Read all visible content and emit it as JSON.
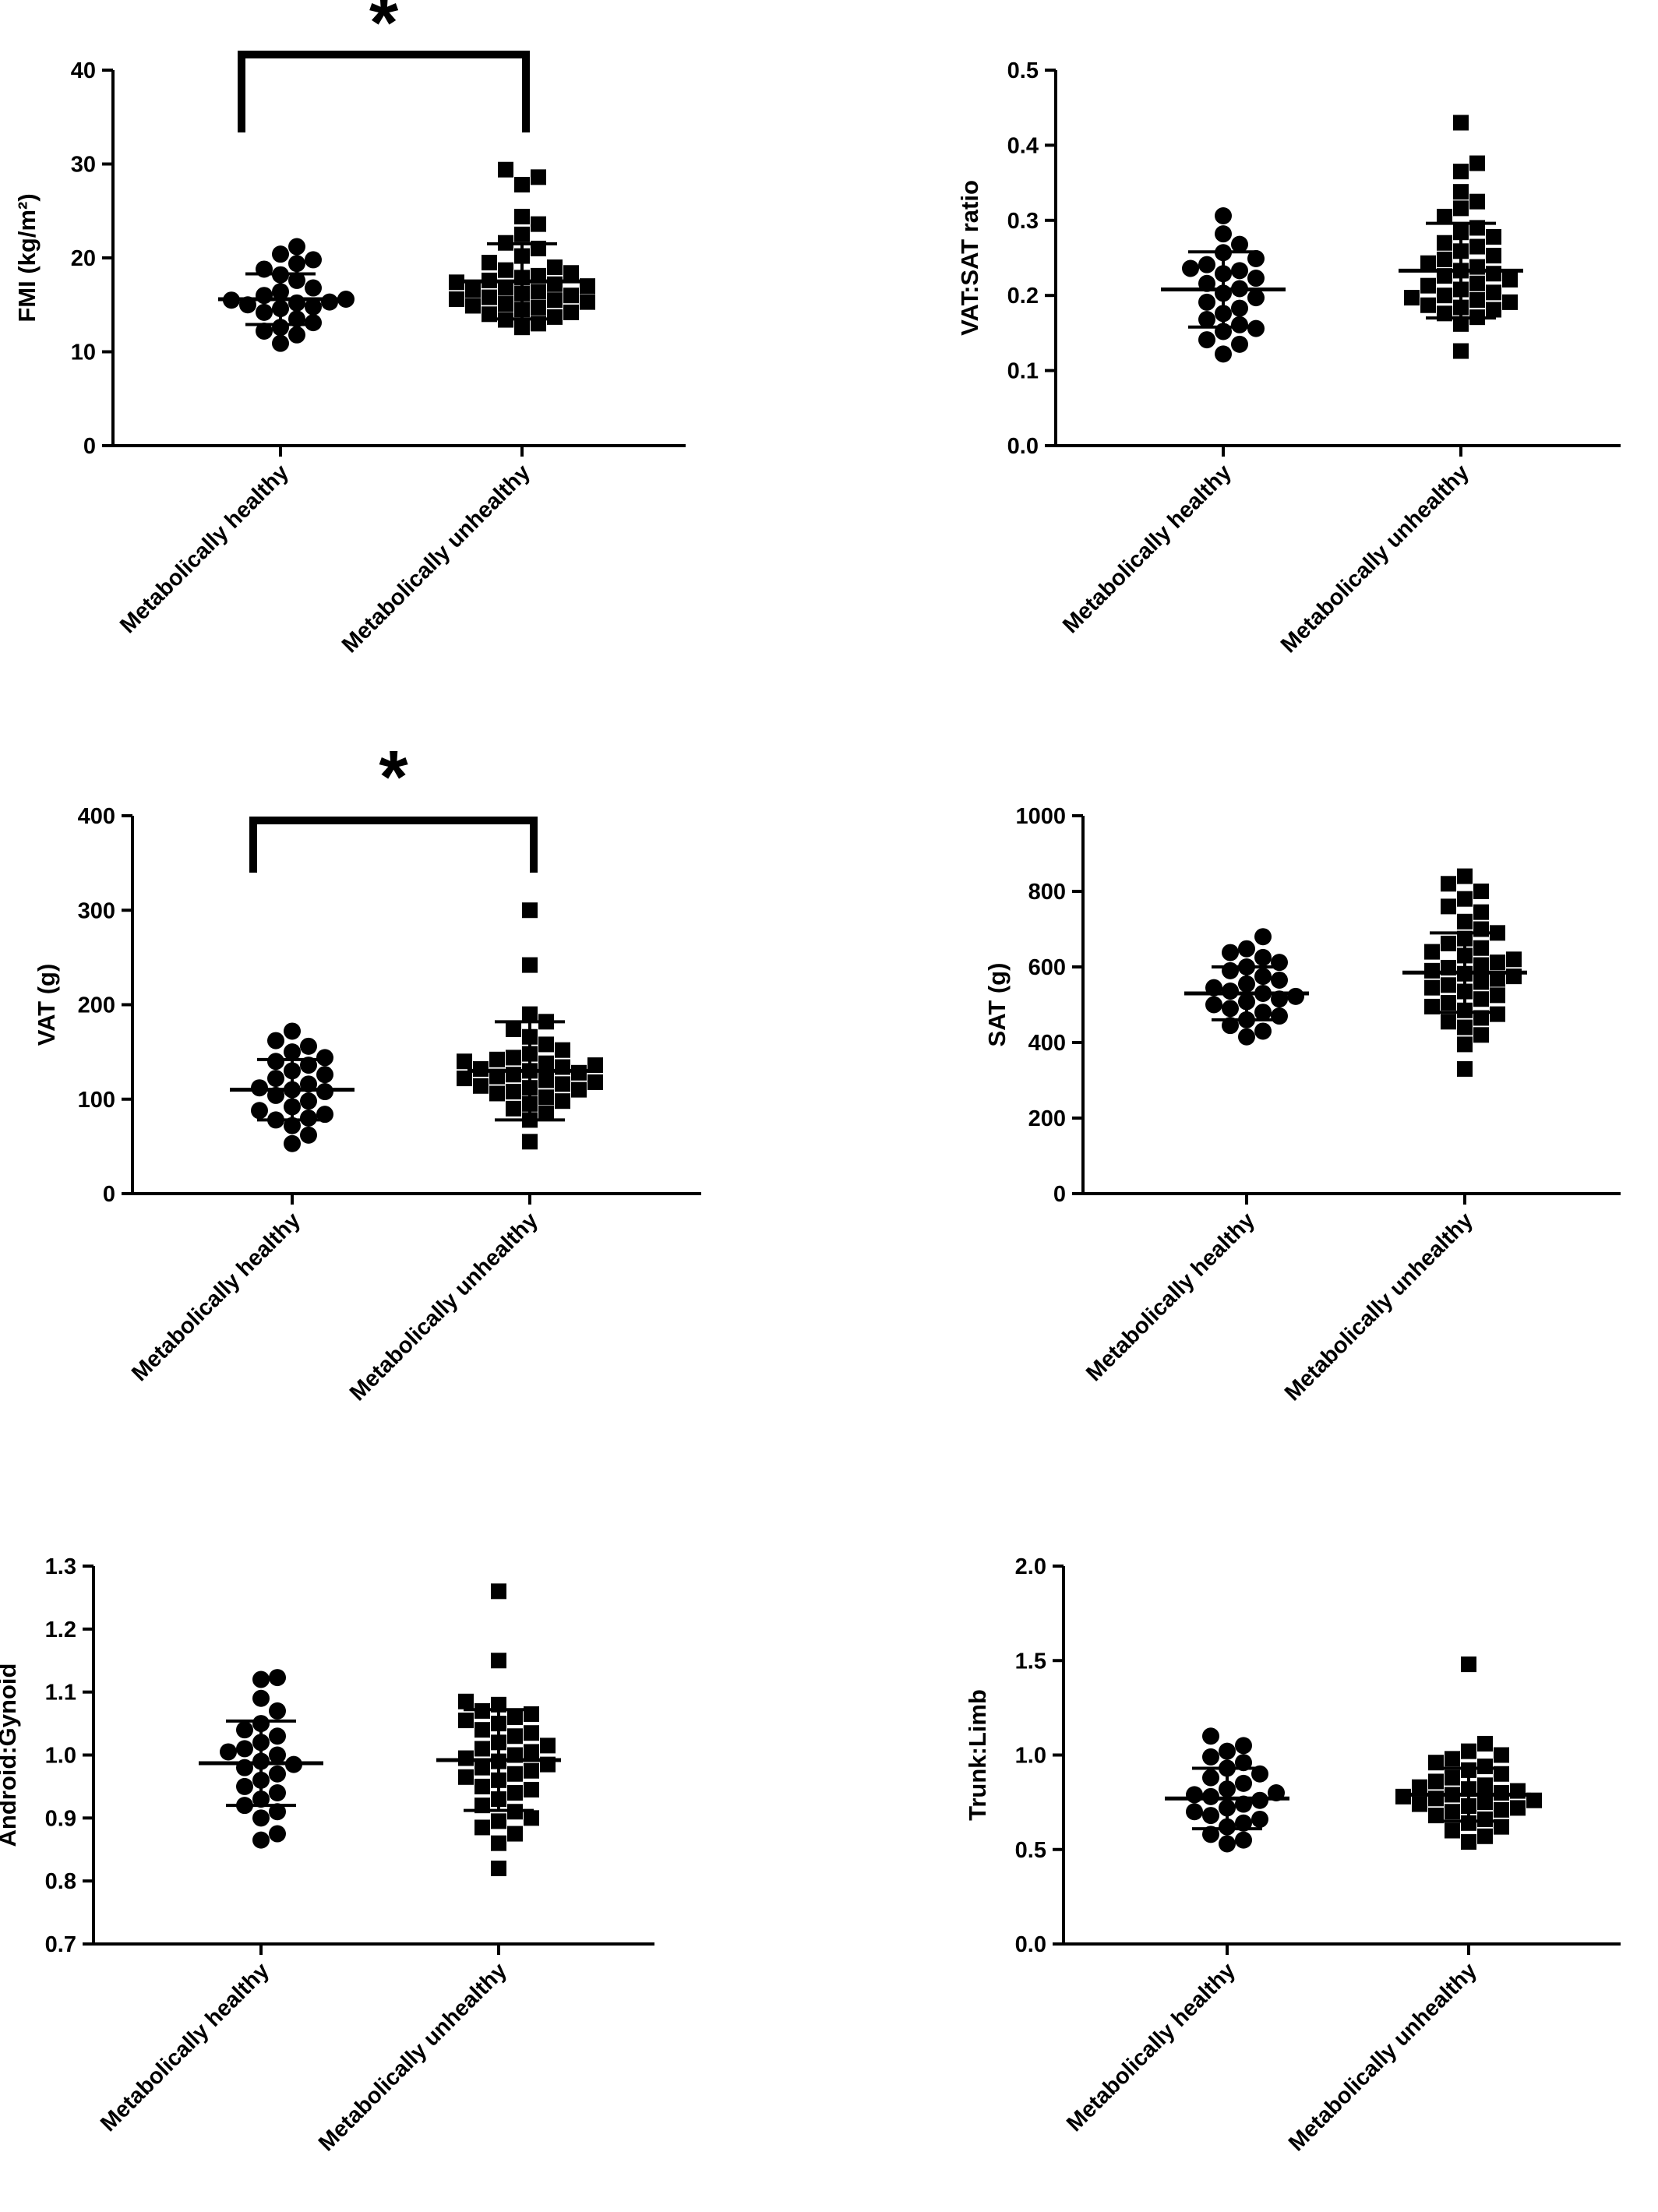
{
  "chart_data": [
    {
      "type": "scatter",
      "title": "",
      "ylabel": "FMI (kg/m²)",
      "ylim": [
        0,
        40
      ],
      "yticks": [
        "0",
        "10",
        "20",
        "30",
        "40"
      ],
      "categories": [
        "Metabolically healthy",
        "Metabolically unhealthy"
      ],
      "significance": "*",
      "series": [
        {
          "name": "Metabolically healthy",
          "marker": "circle",
          "mean": 15.6,
          "sd": 2.7,
          "values": [
            10.9,
            11.8,
            12.2,
            12.6,
            13.1,
            13.5,
            14.2,
            14.6,
            14.8,
            15.0,
            15.2,
            15.3,
            15.5,
            15.6,
            16.0,
            16.4,
            16.8,
            17.6,
            18.2,
            18.8,
            19.4,
            19.8,
            20.4,
            21.2
          ]
        },
        {
          "name": "Metabolically unhealthy",
          "marker": "square",
          "mean": 17.5,
          "sd": 4.0,
          "values": [
            12.6,
            13.0,
            13.4,
            13.7,
            14.0,
            14.2,
            14.5,
            14.7,
            14.9,
            15.1,
            15.3,
            15.5,
            15.6,
            15.8,
            16.0,
            16.2,
            16.4,
            16.6,
            16.8,
            17.0,
            17.2,
            17.4,
            17.6,
            17.9,
            18.1,
            18.4,
            18.7,
            19.0,
            19.5,
            20.2,
            21.0,
            21.6,
            22.5,
            23.6,
            24.4,
            27.8,
            28.6,
            29.4
          ]
        }
      ]
    },
    {
      "type": "scatter",
      "title": "",
      "ylabel": "VAT:SAT ratio",
      "ylim": [
        0,
        0.5
      ],
      "yticks": [
        "0.0",
        "0.1",
        "0.2",
        "0.3",
        "0.4",
        "0.5"
      ],
      "categories": [
        "Metabolically healthy",
        "Metabolically unhealthy"
      ],
      "significance": "",
      "series": [
        {
          "name": "Metabolically healthy",
          "marker": "circle",
          "mean": 0.208,
          "sd": 0.05,
          "values": [
            0.122,
            0.135,
            0.141,
            0.152,
            0.156,
            0.161,
            0.168,
            0.176,
            0.183,
            0.191,
            0.197,
            0.203,
            0.209,
            0.216,
            0.223,
            0.229,
            0.233,
            0.236,
            0.241,
            0.249,
            0.257,
            0.268,
            0.282,
            0.306
          ]
        },
        {
          "name": "Metabolically unhealthy",
          "marker": "square",
          "mean": 0.233,
          "sd": 0.063,
          "values": [
            0.126,
            0.162,
            0.171,
            0.176,
            0.181,
            0.184,
            0.187,
            0.191,
            0.194,
            0.197,
            0.2,
            0.204,
            0.208,
            0.213,
            0.216,
            0.221,
            0.226,
            0.229,
            0.233,
            0.238,
            0.243,
            0.248,
            0.253,
            0.259,
            0.265,
            0.27,
            0.278,
            0.284,
            0.29,
            0.305,
            0.316,
            0.325,
            0.338,
            0.365,
            0.376,
            0.43
          ]
        }
      ]
    },
    {
      "type": "scatter",
      "title": "",
      "ylabel": "VAT (g)",
      "ylim": [
        0,
        400
      ],
      "yticks": [
        "0",
        "100",
        "200",
        "300",
        "400"
      ],
      "categories": [
        "Metabolically healthy",
        "Metabolically unhealthy"
      ],
      "significance": "*",
      "series": [
        {
          "name": "Metabolically healthy",
          "marker": "circle",
          "mean": 110,
          "sd": 32,
          "values": [
            53,
            62,
            72,
            78,
            80,
            84,
            88,
            92,
            98,
            104,
            108,
            110,
            112,
            116,
            122,
            126,
            130,
            136,
            140,
            144,
            150,
            156,
            162,
            172
          ]
        },
        {
          "name": "Metabolically unhealthy",
          "marker": "square",
          "mean": 130,
          "sd": 52,
          "values": [
            55,
            78,
            85,
            90,
            95,
            98,
            102,
            106,
            108,
            110,
            112,
            114,
            116,
            118,
            120,
            122,
            124,
            126,
            128,
            130,
            132,
            134,
            136,
            138,
            140,
            142,
            144,
            148,
            152,
            158,
            166,
            174,
            182,
            190,
            242,
            300
          ]
        }
      ]
    },
    {
      "type": "scatter",
      "title": "",
      "ylabel": "SAT (g)",
      "ylim": [
        0,
        1000
      ],
      "yticks": [
        "0",
        "200",
        "400",
        "600",
        "800",
        "1000"
      ],
      "categories": [
        "Metabolically healthy",
        "Metabolically unhealthy"
      ],
      "significance": "",
      "series": [
        {
          "name": "Metabolically healthy",
          "marker": "circle",
          "mean": 530,
          "sd": 70,
          "values": [
            415,
            430,
            445,
            460,
            470,
            480,
            490,
            500,
            508,
            515,
            522,
            530,
            536,
            545,
            555,
            565,
            575,
            590,
            600,
            612,
            625,
            638,
            648,
            680
          ]
        },
        {
          "name": "Metabolically unhealthy",
          "marker": "square",
          "mean": 585,
          "sd": 105,
          "values": [
            330,
            395,
            420,
            440,
            455,
            465,
            475,
            485,
            495,
            505,
            515,
            525,
            535,
            545,
            552,
            560,
            568,
            575,
            582,
            590,
            598,
            605,
            612,
            620,
            630,
            640,
            650,
            662,
            675,
            690,
            700,
            720,
            745,
            760,
            780,
            800,
            820,
            840
          ]
        }
      ]
    },
    {
      "type": "scatter",
      "title": "",
      "ylabel": "Android:Gynoid",
      "ylim": [
        0.7,
        1.3
      ],
      "yticks": [
        "0.7",
        "0.8",
        "0.9",
        "1.0",
        "1.1",
        "1.2",
        "1.3"
      ],
      "categories": [
        "Metabolically healthy",
        "Metabolically unhealthy"
      ],
      "significance": "",
      "series": [
        {
          "name": "Metabolically healthy",
          "marker": "circle",
          "mean": 0.987,
          "sd": 0.067,
          "values": [
            0.865,
            0.875,
            0.9,
            0.91,
            0.92,
            0.93,
            0.94,
            0.95,
            0.96,
            0.97,
            0.98,
            0.985,
            0.99,
            1.0,
            1.005,
            1.01,
            1.02,
            1.03,
            1.04,
            1.05,
            1.07,
            1.09,
            1.12,
            1.123
          ]
        },
        {
          "name": "Metabolically unhealthy",
          "marker": "square",
          "mean": 0.992,
          "sd": 0.08,
          "values": [
            0.82,
            0.86,
            0.875,
            0.885,
            0.895,
            0.9,
            0.91,
            0.92,
            0.93,
            0.94,
            0.945,
            0.95,
            0.96,
            0.965,
            0.97,
            0.975,
            0.98,
            0.985,
            0.99,
            0.995,
            1.0,
            1.005,
            1.01,
            1.015,
            1.02,
            1.03,
            1.035,
            1.04,
            1.05,
            1.055,
            1.06,
            1.065,
            1.07,
            1.08,
            1.085,
            1.15,
            1.26
          ]
        }
      ]
    },
    {
      "type": "scatter",
      "title": "",
      "ylabel": "Trunk:Limb",
      "ylim": [
        0,
        2.0
      ],
      "yticks": [
        "0.0",
        "0.5",
        "1.0",
        "1.5",
        "2.0"
      ],
      "categories": [
        "Metabolically healthy",
        "Metabolically unhealthy"
      ],
      "significance": "",
      "series": [
        {
          "name": "Metabolically healthy",
          "marker": "circle",
          "mean": 0.77,
          "sd": 0.16,
          "values": [
            0.53,
            0.55,
            0.58,
            0.62,
            0.64,
            0.66,
            0.68,
            0.7,
            0.72,
            0.74,
            0.76,
            0.78,
            0.79,
            0.8,
            0.82,
            0.85,
            0.88,
            0.9,
            0.93,
            0.96,
            0.99,
            1.02,
            1.05,
            1.1
          ]
        },
        {
          "name": "Metabolically unhealthy",
          "marker": "square",
          "mean": 0.79,
          "sd": 0.14,
          "values": [
            0.54,
            0.57,
            0.6,
            0.62,
            0.64,
            0.66,
            0.68,
            0.7,
            0.71,
            0.72,
            0.73,
            0.74,
            0.75,
            0.76,
            0.77,
            0.78,
            0.79,
            0.8,
            0.81,
            0.82,
            0.83,
            0.84,
            0.86,
            0.88,
            0.9,
            0.92,
            0.94,
            0.96,
            0.98,
            1.0,
            1.02,
            1.06,
            1.48
          ]
        }
      ]
    }
  ]
}
